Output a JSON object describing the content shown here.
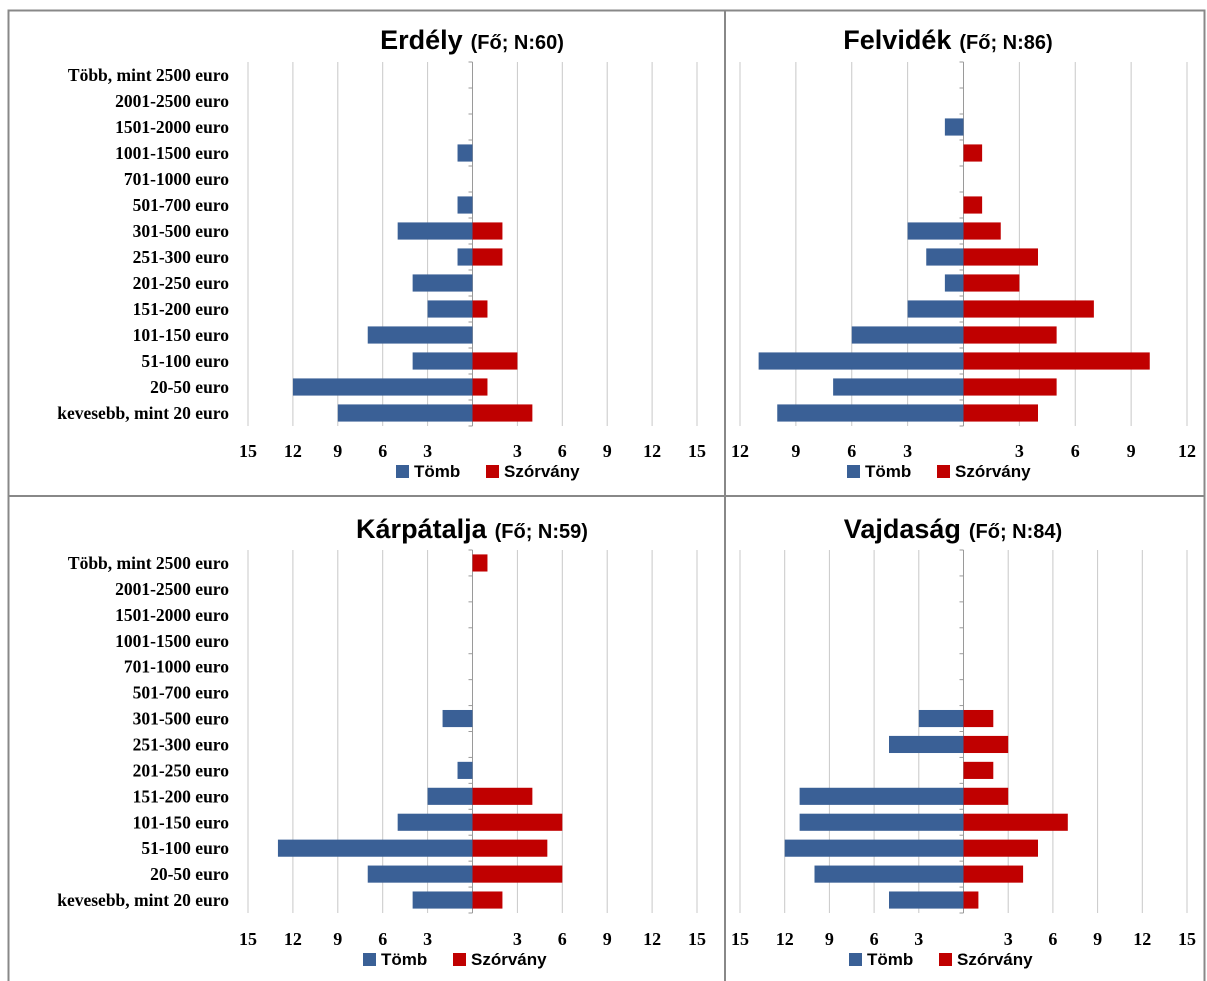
{
  "colors": {
    "tomb": "#3A6096",
    "szorvany": "#C00000",
    "grid": "#C8C8C8",
    "frame": "#888888"
  },
  "legend": [
    "Tömb",
    "Szórvány"
  ],
  "chart_data": [
    {
      "type": "bar",
      "orientation": "horizontal-diverging",
      "title": "Erdély",
      "subtitle": "(Fő; N:60)",
      "categories": [
        "Több, mint 2500 euro",
        "2001-2500 euro",
        "1501-2000 euro",
        "1001-1500 euro",
        "701-1000 euro",
        "501-700 euro",
        "301-500 euro",
        "251-300 euro",
        "201-250 euro",
        "151-200 euro",
        "101-150 euro",
        "51-100 euro",
        "20-50 euro",
        "kevesebb, mint 20 euro"
      ],
      "series": [
        {
          "name": "Tömb",
          "values": [
            0,
            0,
            0,
            1,
            0,
            1,
            5,
            1,
            4,
            3,
            7,
            4,
            12,
            9
          ]
        },
        {
          "name": "Szórvány",
          "values": [
            0,
            0,
            0,
            0,
            0,
            0,
            2,
            2,
            0,
            1,
            0,
            3,
            1,
            4
          ]
        }
      ],
      "xlim": [
        -15,
        15
      ],
      "xticks": [
        -15,
        -12,
        -9,
        -6,
        -3,
        3,
        6,
        9,
        12,
        15
      ],
      "tick_labels": [
        "15",
        "12",
        "9",
        "6",
        "3",
        "3",
        "6",
        "9",
        "12",
        "15"
      ],
      "grid": true,
      "legend_position": "bottom"
    },
    {
      "type": "bar",
      "orientation": "horizontal-diverging",
      "title": "Felvidék",
      "subtitle": "(Fő; N:86)",
      "categories": [
        "Több, mint 2500 euro",
        "2001-2500 euro",
        "1501-2000 euro",
        "1001-1500 euro",
        "701-1000 euro",
        "501-700 euro",
        "301-500 euro",
        "251-300 euro",
        "201-250 euro",
        "151-200 euro",
        "101-150 euro",
        "51-100 euro",
        "20-50 euro",
        "kevesebb, mint 20 euro"
      ],
      "series": [
        {
          "name": "Tömb",
          "values": [
            0,
            0,
            1,
            0,
            0,
            0,
            3,
            2,
            1,
            3,
            6,
            11,
            7,
            10
          ]
        },
        {
          "name": "Szórvány",
          "values": [
            0,
            0,
            0,
            1,
            0,
            1,
            2,
            4,
            3,
            7,
            5,
            10,
            5,
            4
          ]
        }
      ],
      "xlim": [
        -12,
        12
      ],
      "xticks": [
        -12,
        -9,
        -6,
        -3,
        3,
        6,
        9,
        12
      ],
      "tick_labels": [
        "12",
        "9",
        "6",
        "3",
        "3",
        "6",
        "9",
        "12"
      ],
      "grid": true,
      "legend_position": "bottom"
    },
    {
      "type": "bar",
      "orientation": "horizontal-diverging",
      "title": "Kárpátalja",
      "subtitle": "(Fő; N:59)",
      "categories": [
        "Több, mint 2500 euro",
        "2001-2500 euro",
        "1501-2000 euro",
        "1001-1500 euro",
        "701-1000 euro",
        "501-700 euro",
        "301-500 euro",
        "251-300 euro",
        "201-250 euro",
        "151-200 euro",
        "101-150 euro",
        "51-100 euro",
        "20-50 euro",
        "kevesebb, mint 20 euro"
      ],
      "series": [
        {
          "name": "Tömb",
          "values": [
            0,
            0,
            0,
            0,
            0,
            0,
            2,
            0,
            1,
            3,
            5,
            13,
            7,
            4
          ]
        },
        {
          "name": "Szórvány",
          "values": [
            1,
            0,
            0,
            0,
            0,
            0,
            0,
            0,
            0,
            4,
            6,
            5,
            6,
            2
          ]
        }
      ],
      "xlim": [
        -15,
        15
      ],
      "xticks": [
        -15,
        -12,
        -9,
        -6,
        -3,
        3,
        6,
        9,
        12,
        15
      ],
      "tick_labels": [
        "15",
        "12",
        "9",
        "6",
        "3",
        "3",
        "6",
        "9",
        "12",
        "15"
      ],
      "grid": true,
      "legend_position": "bottom"
    },
    {
      "type": "bar",
      "orientation": "horizontal-diverging",
      "title": "Vajdaság",
      "subtitle": "(Fő; N:84)",
      "categories": [
        "Több, mint 2500 euro",
        "2001-2500 euro",
        "1501-2000 euro",
        "1001-1500 euro",
        "701-1000 euro",
        "501-700 euro",
        "301-500 euro",
        "251-300 euro",
        "201-250 euro",
        "151-200 euro",
        "101-150 euro",
        "51-100 euro",
        "20-50 euro",
        "kevesebb, mint 20 euro"
      ],
      "series": [
        {
          "name": "Tömb",
          "values": [
            0,
            0,
            0,
            0,
            0,
            0,
            3,
            5,
            0,
            11,
            11,
            12,
            10,
            5
          ]
        },
        {
          "name": "Szórvány",
          "values": [
            0,
            0,
            0,
            0,
            0,
            0,
            2,
            3,
            2,
            3,
            7,
            5,
            4,
            1
          ]
        }
      ],
      "xlim": [
        -15,
        15
      ],
      "xticks": [
        -15,
        -12,
        -9,
        -6,
        -3,
        3,
        6,
        9,
        12,
        15
      ],
      "tick_labels": [
        "15",
        "12",
        "9",
        "6",
        "3",
        "3",
        "6",
        "9",
        "12",
        "15"
      ],
      "grid": true,
      "legend_position": "bottom"
    }
  ]
}
